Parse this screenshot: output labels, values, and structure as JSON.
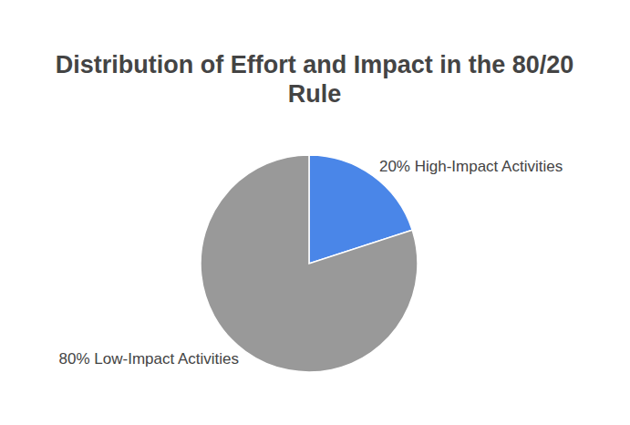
{
  "chart_data": {
    "type": "pie",
    "title": "Distribution of Effort and Impact in the 80/20 Rule",
    "categories": [
      "20% High-Impact Activities",
      "80% Low-Impact Activities"
    ],
    "values": [
      20,
      80
    ],
    "colors": [
      "#4a86e8",
      "#999999"
    ]
  }
}
